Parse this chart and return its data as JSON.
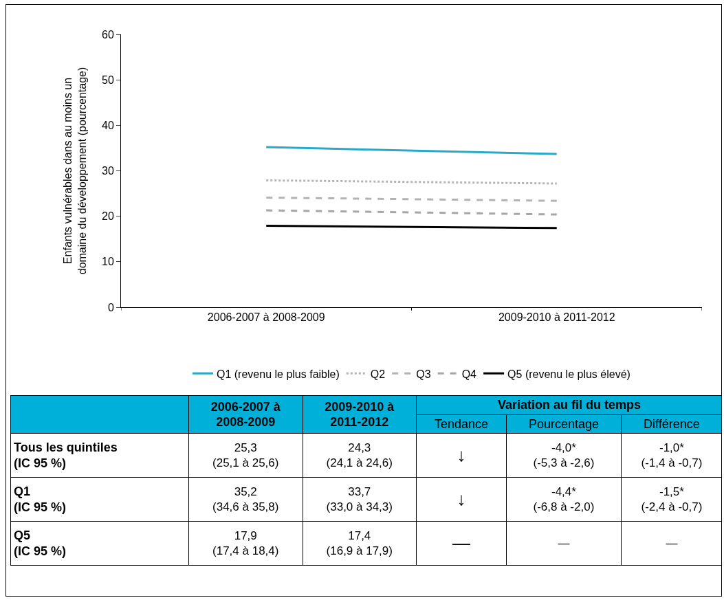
{
  "chart_data": {
    "type": "line",
    "ylabel": "Enfants vulnérables dans au moins un\ndomaine du développement (pourcentage)",
    "categories": [
      "2006-2007 à 2008-2009",
      "2009-2010 à 2011-2012"
    ],
    "series": [
      {
        "name": "Q1 (revenu le plus faible)",
        "color": "#2aa8c8",
        "line_style": "solid",
        "values": [
          35.2,
          33.7
        ]
      },
      {
        "name": "Q2",
        "color": "#b3b3b3",
        "line_style": "dotted",
        "values": [
          27.9,
          27.2
        ]
      },
      {
        "name": "Q3",
        "color": "#b3b3b3",
        "line_style": "dashed",
        "values": [
          24.1,
          23.4
        ]
      },
      {
        "name": "Q4",
        "color": "#a6a6a6",
        "line_style": "dashed",
        "values": [
          21.3,
          20.4
        ]
      },
      {
        "name": "Q5 (revenu le plus élevé)",
        "color": "#000000",
        "line_style": "solid",
        "values": [
          17.9,
          17.4
        ]
      }
    ],
    "ylim": [
      0,
      60
    ],
    "yticks": [
      0,
      10,
      20,
      30,
      40,
      50,
      60
    ],
    "grid": false,
    "legend": "bottom",
    "marker": "none",
    "annotations": [
      "2006-2007 à\n2008-2009",
      "2009-2010 à\n2011-2012",
      "Variation au fil du temps",
      "Tendance",
      "Pourcentage",
      "Différence",
      "Tous les quintiles\n(IC 95 %)",
      "25,3\n(25,1 à 25,6)",
      "24,3\n(24,1 à 24,6)",
      "↓",
      "-4,0*\n(-5,3 à -2,6)",
      "-1,0*\n(-1,4 à -0,7)",
      "Q1\n(IC 95 %)",
      "35,2\n(34,6 à 35,8)",
      "33,7\n(33,0 à 34,3)",
      "↓",
      "-4,4*\n(-6,8 à -2,0)",
      "-1,5*\n(-2,4 à -0,7)",
      "Q5\n(IC 95 %)",
      "17,9\n(17,4 à 18,4)",
      "17,4\n(16,9 à 17,9)",
      "—",
      "—",
      "—"
    ]
  }
}
